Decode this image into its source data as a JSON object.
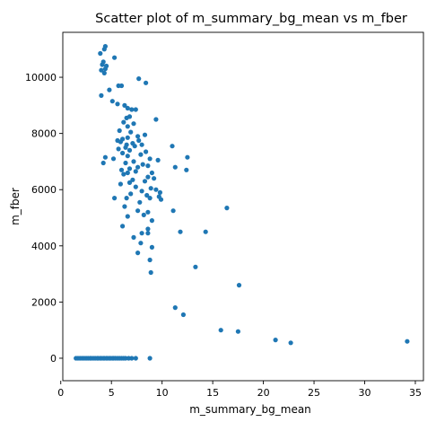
{
  "chart_data": {
    "type": "scatter",
    "title": "Scatter plot of m_summary_bg_mean vs m_fber",
    "xlabel": "m_summary_bg_mean",
    "ylabel": "m_fber",
    "xlim": [
      0.2,
      35.8
    ],
    "ylim": [
      -800,
      11600
    ],
    "xticks": [
      0,
      5,
      10,
      15,
      20,
      25,
      30,
      35
    ],
    "yticks": [
      0,
      2000,
      4000,
      6000,
      8000,
      10000
    ],
    "xtick_labels": [
      "0",
      "5",
      "10",
      "15",
      "20",
      "25",
      "30",
      "35"
    ],
    "ytick_labels": [
      "0",
      "2000",
      "4000",
      "6000",
      "8000",
      "10000"
    ],
    "grid": false,
    "marker_color": "#1f77b4",
    "series": [
      {
        "points": [
          [
            4.4,
            11100
          ],
          [
            4.3,
            11000
          ],
          [
            3.9,
            10850
          ],
          [
            5.3,
            10700
          ],
          [
            4.2,
            10550
          ],
          [
            4.1,
            10450
          ],
          [
            4.5,
            10400
          ],
          [
            4.4,
            10300
          ],
          [
            4.0,
            10250
          ],
          [
            4.3,
            10150
          ],
          [
            7.7,
            9950
          ],
          [
            8.4,
            9800
          ],
          [
            5.7,
            9700
          ],
          [
            6.0,
            9700
          ],
          [
            4.8,
            9550
          ],
          [
            4.0,
            9350
          ],
          [
            5.1,
            9150
          ],
          [
            5.6,
            9050
          ],
          [
            6.3,
            9000
          ],
          [
            6.6,
            8900
          ],
          [
            7.0,
            8850
          ],
          [
            7.4,
            8850
          ],
          [
            9.4,
            8500
          ],
          [
            6.5,
            8550
          ],
          [
            6.8,
            8600
          ],
          [
            6.2,
            8400
          ],
          [
            7.2,
            8350
          ],
          [
            6.6,
            8250
          ],
          [
            5.8,
            8100
          ],
          [
            6.9,
            8050
          ],
          [
            8.3,
            7950
          ],
          [
            7.6,
            7900
          ],
          [
            6.6,
            7850
          ],
          [
            6.1,
            7800
          ],
          [
            7.7,
            7750
          ],
          [
            5.6,
            7750
          ],
          [
            5.9,
            7700
          ],
          [
            7.1,
            7650
          ],
          [
            8.0,
            7600
          ],
          [
            6.5,
            7600
          ],
          [
            7.3,
            7550
          ],
          [
            11.0,
            7550
          ],
          [
            6.4,
            7500
          ],
          [
            5.7,
            7450
          ],
          [
            6.8,
            7400
          ],
          [
            8.4,
            7350
          ],
          [
            6.1,
            7300
          ],
          [
            7.9,
            7250
          ],
          [
            6.6,
            7200
          ],
          [
            12.5,
            7150
          ],
          [
            4.4,
            7150
          ],
          [
            5.2,
            7100
          ],
          [
            8.8,
            7100
          ],
          [
            9.6,
            7050
          ],
          [
            7.2,
            7000
          ],
          [
            4.2,
            6950
          ],
          [
            6.4,
            6950
          ],
          [
            8.1,
            6900
          ],
          [
            8.6,
            6850
          ],
          [
            11.3,
            6800
          ],
          [
            7.6,
            6800
          ],
          [
            6.8,
            6750
          ],
          [
            12.4,
            6700
          ],
          [
            6.0,
            6700
          ],
          [
            7.4,
            6650
          ],
          [
            6.6,
            6600
          ],
          [
            9.0,
            6600
          ],
          [
            6.2,
            6550
          ],
          [
            8.6,
            6450
          ],
          [
            9.2,
            6400
          ],
          [
            7.1,
            6350
          ],
          [
            8.3,
            6300
          ],
          [
            6.8,
            6250
          ],
          [
            5.9,
            6200
          ],
          [
            7.4,
            6100
          ],
          [
            8.9,
            6050
          ],
          [
            9.4,
            6000
          ],
          [
            8.0,
            5950
          ],
          [
            9.8,
            5900
          ],
          [
            6.9,
            5850
          ],
          [
            8.5,
            5800
          ],
          [
            9.7,
            5750
          ],
          [
            6.5,
            5700
          ],
          [
            8.8,
            5700
          ],
          [
            5.3,
            5700
          ],
          [
            9.9,
            5650
          ],
          [
            7.8,
            5550
          ],
          [
            6.3,
            5400
          ],
          [
            16.4,
            5350
          ],
          [
            11.1,
            5250
          ],
          [
            7.6,
            5250
          ],
          [
            8.6,
            5200
          ],
          [
            8.2,
            5100
          ],
          [
            6.6,
            5050
          ],
          [
            9.0,
            4900
          ],
          [
            6.1,
            4700
          ],
          [
            8.6,
            4600
          ],
          [
            11.8,
            4500
          ],
          [
            14.3,
            4500
          ],
          [
            8.0,
            4450
          ],
          [
            8.6,
            4450
          ],
          [
            7.2,
            4300
          ],
          [
            7.9,
            4100
          ],
          [
            9.0,
            3950
          ],
          [
            7.6,
            3750
          ],
          [
            8.8,
            3500
          ],
          [
            13.3,
            3250
          ],
          [
            8.9,
            3050
          ],
          [
            17.6,
            2600
          ],
          [
            11.3,
            1800
          ],
          [
            12.1,
            1550
          ],
          [
            15.8,
            1000
          ],
          [
            17.5,
            950
          ],
          [
            21.2,
            650
          ],
          [
            22.7,
            550
          ],
          [
            34.2,
            600
          ],
          [
            1.5,
            0
          ],
          [
            1.7,
            0
          ],
          [
            1.9,
            0
          ],
          [
            2.1,
            0
          ],
          [
            2.3,
            0
          ],
          [
            2.5,
            0
          ],
          [
            2.7,
            0
          ],
          [
            2.9,
            0
          ],
          [
            3.0,
            0
          ],
          [
            3.2,
            0
          ],
          [
            3.4,
            0
          ],
          [
            3.6,
            0
          ],
          [
            3.7,
            0
          ],
          [
            3.9,
            0
          ],
          [
            4.0,
            0
          ],
          [
            4.2,
            0
          ],
          [
            4.3,
            0
          ],
          [
            4.5,
            0
          ],
          [
            4.6,
            0
          ],
          [
            4.8,
            0
          ],
          [
            4.9,
            0
          ],
          [
            5.1,
            0
          ],
          [
            5.2,
            0
          ],
          [
            5.4,
            0
          ],
          [
            5.6,
            0
          ],
          [
            5.8,
            0
          ],
          [
            6.0,
            0
          ],
          [
            6.2,
            0
          ],
          [
            6.4,
            0
          ],
          [
            6.7,
            0
          ],
          [
            7.0,
            0
          ],
          [
            7.4,
            0
          ],
          [
            8.8,
            0
          ]
        ]
      }
    ]
  }
}
